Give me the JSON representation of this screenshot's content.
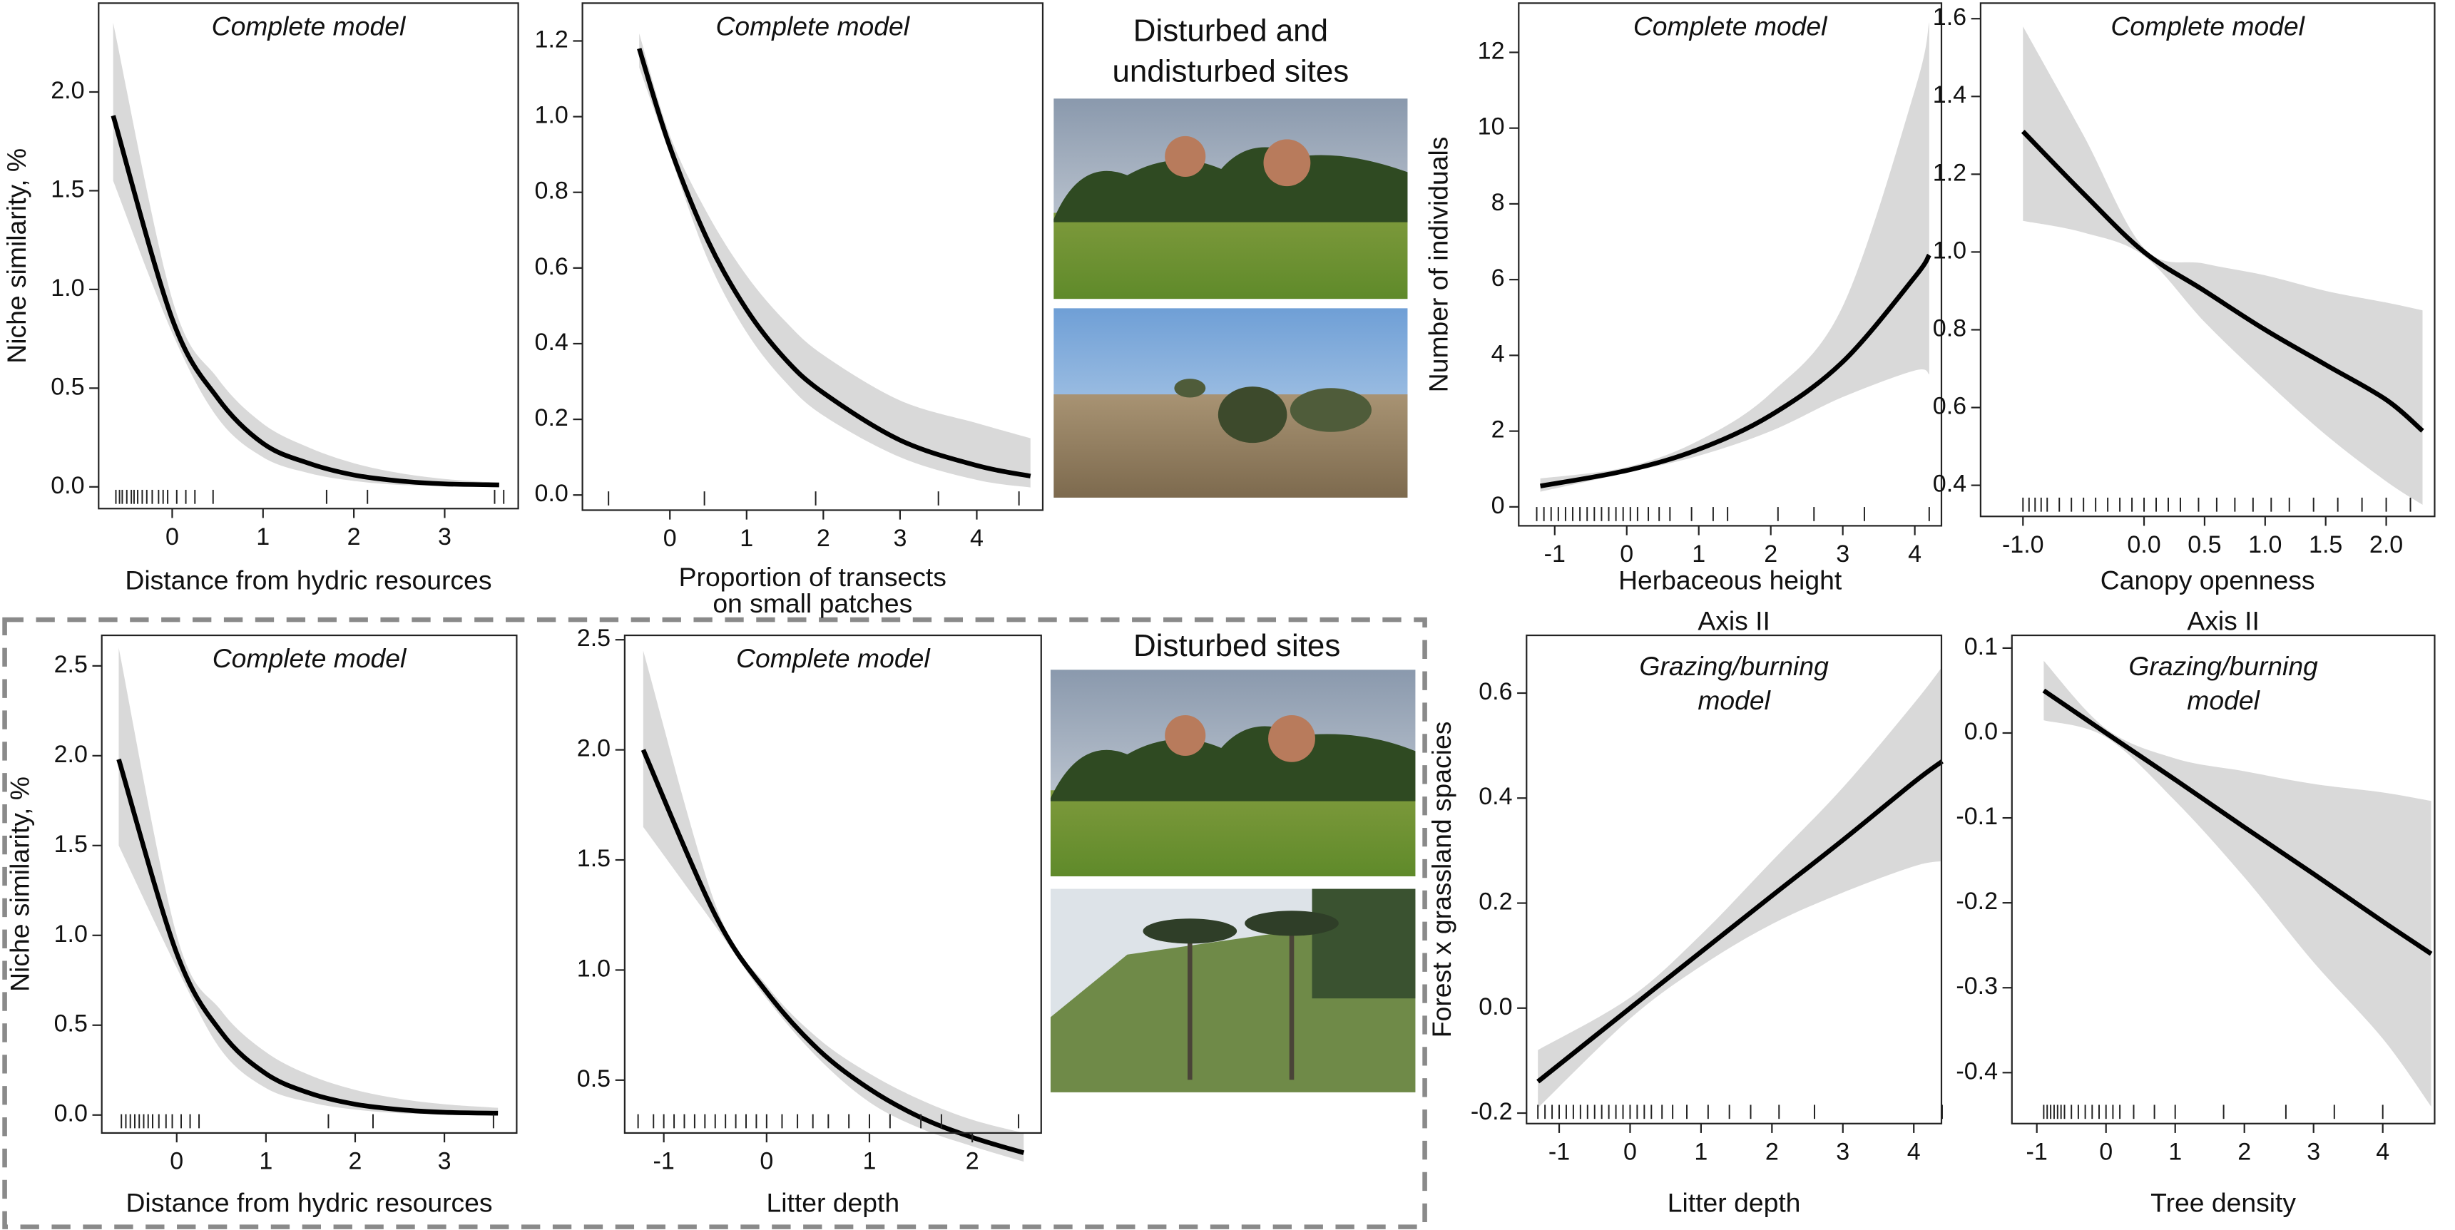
{
  "photo_titles": [
    [
      "Disturbed and",
      "undisturbed sites"
    ],
    [
      "Disturbed sites"
    ]
  ],
  "chart_data": [
    {
      "type": "line",
      "title": "Complete model",
      "x_label": [
        "Distance from hydric resources"
      ],
      "y_label": "Niche similarity, %",
      "color": "#000000",
      "band_color": "#d9d9d9",
      "x": [
        -0.65,
        0,
        0.5,
        1,
        1.5,
        2,
        2.5,
        3,
        3.6
      ],
      "values": [
        1.88,
        0.85,
        0.45,
        0.22,
        0.12,
        0.06,
        0.03,
        0.015,
        0.01
      ],
      "lower": [
        1.55,
        0.78,
        0.35,
        0.15,
        0.07,
        0.03,
        0.01,
        0.005,
        0
      ],
      "upper": [
        2.35,
        0.95,
        0.55,
        0.32,
        0.2,
        0.12,
        0.07,
        0.04,
        0.02
      ],
      "rug": [
        -0.62,
        -0.58,
        -0.55,
        -0.5,
        -0.45,
        -0.42,
        -0.38,
        -0.33,
        -0.28,
        -0.22,
        -0.15,
        -0.1,
        -0.05,
        0.05,
        0.15,
        0.25,
        0.45,
        1.7,
        2.15,
        3.55,
        3.65
      ],
      "xlim": [
        -0.81,
        3.81
      ],
      "ylim": [
        -0.11,
        2.45
      ],
      "xticks": [
        0,
        1,
        2,
        3
      ],
      "yticks": [
        {
          "value": 0,
          "label": "0.0"
        },
        0.5,
        {
          "value": 1,
          "label": "1.0"
        },
        1.5,
        {
          "value": 2,
          "label": "2.0"
        }
      ]
    },
    {
      "type": "line",
      "title": "Complete model",
      "x_label": [
        "Proportion of transects",
        "on small patches"
      ],
      "color": "#000000",
      "band_color": "#d9d9d9",
      "x": [
        -0.4,
        0,
        0.5,
        1,
        1.5,
        2,
        3,
        4,
        4.7
      ],
      "values": [
        1.18,
        0.92,
        0.67,
        0.49,
        0.36,
        0.27,
        0.145,
        0.078,
        0.05
      ],
      "lower": [
        1.13,
        0.9,
        0.62,
        0.43,
        0.3,
        0.21,
        0.1,
        0.04,
        0.02
      ],
      "upper": [
        1.22,
        0.95,
        0.74,
        0.58,
        0.46,
        0.37,
        0.25,
        0.19,
        0.15
      ],
      "rug": [
        -0.8,
        0.45,
        1.9,
        3.5,
        4.55
      ],
      "xlim": [
        -1.14,
        4.86
      ],
      "ylim": [
        -0.04,
        1.3
      ],
      "xticks": [
        0,
        1,
        2,
        3,
        4
      ],
      "yticks": [
        {
          "value": 0,
          "label": "0.0"
        },
        0.2,
        0.4,
        0.6,
        0.8,
        {
          "value": 1,
          "label": "1.0"
        },
        1.2
      ]
    },
    {
      "type": "line",
      "title": "Complete model",
      "x_label": [
        "Herbaceous height"
      ],
      "y_label": "Number of individuals",
      "color": "#000000",
      "band_color": "#d9d9d9",
      "x": [
        -1.2,
        0,
        1,
        2,
        3,
        4,
        4.2
      ],
      "values": [
        0.55,
        0.96,
        1.52,
        2.42,
        3.83,
        6.07,
        6.65
      ],
      "lower": [
        0.4,
        0.9,
        1.35,
        2.0,
        2.9,
        3.6,
        3.5
      ],
      "upper": [
        0.75,
        1.05,
        1.75,
        3.0,
        5.3,
        11,
        12.8
      ],
      "rug": [
        -1.25,
        -1.15,
        -1.05,
        -0.95,
        -0.85,
        -0.75,
        -0.65,
        -0.55,
        -0.45,
        -0.35,
        -0.25,
        -0.15,
        -0.05,
        0.05,
        0.15,
        0.3,
        0.45,
        0.6,
        0.9,
        1.2,
        1.4,
        2.1,
        2.6,
        3.3,
        4.2
      ],
      "xlim": [
        -1.5,
        4.37
      ],
      "ylim": [
        -0.5,
        13.3
      ],
      "xticks": [
        -1,
        0,
        1,
        2,
        3,
        4
      ],
      "yticks": [
        0,
        2,
        4,
        6,
        8,
        10,
        12
      ]
    },
    {
      "type": "line",
      "title": "Complete model",
      "x_label": [
        "Canopy openness"
      ],
      "color": "#000000",
      "band_color": "#d9d9d9",
      "x": [
        -1.0,
        -0.5,
        0,
        0.5,
        1,
        1.5,
        2,
        2.3
      ],
      "values": [
        1.31,
        1.15,
        1.0,
        0.9,
        0.8,
        0.71,
        0.62,
        0.54
      ],
      "lower": [
        1.08,
        1.05,
        0.99,
        0.82,
        0.67,
        0.53,
        0.41,
        0.35
      ],
      "upper": [
        1.58,
        1.3,
        1.01,
        0.97,
        0.94,
        0.9,
        0.87,
        0.85
      ],
      "rug": [
        -1.0,
        -0.95,
        -0.9,
        -0.85,
        -0.8,
        -0.7,
        -0.6,
        -0.5,
        -0.4,
        -0.3,
        -0.2,
        -0.1,
        0.0,
        0.1,
        0.2,
        0.3,
        0.45,
        0.6,
        0.75,
        0.9,
        1.05,
        1.2,
        1.4,
        1.6,
        1.8,
        2.0,
        2.2
      ],
      "xlim": [
        -1.35,
        2.4
      ],
      "ylim": [
        0.32,
        1.64
      ],
      "xticks": [
        {
          "value": -1,
          "label": "-1.0"
        },
        {
          "value": 0,
          "label": "0.0"
        },
        0.5,
        {
          "value": 1,
          "label": "1.0"
        },
        1.5,
        {
          "value": 2,
          "label": "2.0"
        }
      ],
      "yticks": [
        0.4,
        0.6,
        0.8,
        {
          "value": 1,
          "label": "1.0"
        },
        1.2,
        1.4,
        1.6
      ]
    },
    {
      "type": "line",
      "title": "Complete model",
      "x_label": [
        "Distance from hydric resources"
      ],
      "y_label": "Niche similarity, %",
      "color": "#000000",
      "band_color": "#d9d9d9",
      "x": [
        -0.65,
        0,
        0.5,
        1,
        1.5,
        2,
        2.5,
        3,
        3.6
      ],
      "values": [
        1.98,
        0.9,
        0.46,
        0.23,
        0.12,
        0.06,
        0.03,
        0.015,
        0.01
      ],
      "lower": [
        1.5,
        0.82,
        0.36,
        0.15,
        0.07,
        0.03,
        0.01,
        0.005,
        0
      ],
      "upper": [
        2.6,
        1.0,
        0.58,
        0.35,
        0.22,
        0.14,
        0.09,
        0.06,
        0.04
      ],
      "rug": [
        -0.62,
        -0.57,
        -0.52,
        -0.47,
        -0.42,
        -0.37,
        -0.32,
        -0.27,
        -0.2,
        -0.12,
        -0.05,
        0.05,
        0.15,
        0.25,
        1.7,
        2.2,
        3.55
      ],
      "xlim": [
        -0.84,
        3.81
      ],
      "ylim": [
        -0.1,
        2.67
      ],
      "xticks": [
        0,
        1,
        2,
        3
      ],
      "yticks": [
        {
          "value": 0,
          "label": "0.0"
        },
        0.5,
        {
          "value": 1,
          "label": "1.0"
        },
        1.5,
        {
          "value": 2,
          "label": "2.0"
        },
        2.5
      ]
    },
    {
      "type": "line",
      "title": "Complete model",
      "x_label": [
        "Litter depth"
      ],
      "color": "#000000",
      "band_color": "#d9d9d9",
      "x": [
        -1.2,
        -0.5,
        0,
        0.5,
        1,
        1.5,
        2,
        2.5
      ],
      "values": [
        2.0,
        1.25,
        0.9,
        0.64,
        0.46,
        0.33,
        0.24,
        0.17
      ],
      "lower": [
        1.65,
        1.2,
        0.87,
        0.6,
        0.4,
        0.28,
        0.2,
        0.13
      ],
      "upper": [
        2.45,
        1.3,
        0.93,
        0.69,
        0.53,
        0.41,
        0.32,
        0.26
      ],
      "rug": [
        -1.25,
        -1.1,
        -1.0,
        -0.9,
        -0.8,
        -0.7,
        -0.6,
        -0.5,
        -0.4,
        -0.3,
        -0.2,
        -0.1,
        0.0,
        0.15,
        0.3,
        0.45,
        0.6,
        0.8,
        1.0,
        1.2,
        1.5,
        1.7,
        2.45
      ],
      "xlim": [
        -1.38,
        2.67
      ],
      "ylim": [
        0.26,
        2.52
      ],
      "xticks": [
        -1,
        0,
        1,
        2
      ],
      "yticks": [
        0.5,
        {
          "value": 1,
          "label": "1.0"
        },
        1.5,
        {
          "value": 2,
          "label": "2.0"
        },
        2.5
      ]
    },
    {
      "type": "line",
      "title": "Axis II",
      "annotation": [
        "Grazing/burning",
        "model"
      ],
      "x_label": [
        "Litter depth"
      ],
      "y_label": "Forest x grassland spacies",
      "color": "#000000",
      "band_color": "#d9d9d9",
      "x": [
        -1.3,
        0,
        1,
        2,
        3,
        4,
        4.4
      ],
      "values": [
        -0.14,
        0.0,
        0.107,
        0.214,
        0.32,
        0.43,
        0.47
      ],
      "lower": [
        -0.19,
        -0.02,
        0.08,
        0.16,
        0.22,
        0.27,
        0.28
      ],
      "upper": [
        -0.08,
        0.02,
        0.14,
        0.28,
        0.42,
        0.58,
        0.65
      ],
      "rug": [
        -1.3,
        -1.2,
        -1.1,
        -1.0,
        -0.9,
        -0.8,
        -0.7,
        -0.6,
        -0.5,
        -0.4,
        -0.3,
        -0.2,
        -0.1,
        0.0,
        0.1,
        0.2,
        0.3,
        0.45,
        0.6,
        0.8,
        1.1,
        1.4,
        1.7,
        2.1,
        2.6,
        4.4
      ],
      "xlim": [
        -1.46,
        4.39
      ],
      "ylim": [
        -0.22,
        0.71
      ],
      "xticks": [
        -1,
        0,
        1,
        2,
        3,
        4
      ],
      "yticks": [
        -0.2,
        {
          "value": 0,
          "label": "0.0"
        },
        0.2,
        0.4,
        0.6
      ]
    },
    {
      "type": "line",
      "title": "Axis II",
      "annotation": [
        "Grazing/burning",
        "model"
      ],
      "x_label": [
        "Tree density"
      ],
      "color": "#000000",
      "band_color": "#d9d9d9",
      "x": [
        -0.9,
        0,
        1,
        2,
        3,
        4,
        4.7
      ],
      "values": [
        0.05,
        0.0,
        -0.055,
        -0.111,
        -0.166,
        -0.222,
        -0.26
      ],
      "lower": [
        0.015,
        -0.005,
        -0.08,
        -0.17,
        -0.27,
        -0.36,
        -0.44
      ],
      "upper": [
        0.085,
        0.005,
        -0.03,
        -0.045,
        -0.06,
        -0.07,
        -0.08
      ],
      "rug": [
        -0.9,
        -0.85,
        -0.8,
        -0.75,
        -0.7,
        -0.65,
        -0.6,
        -0.5,
        -0.4,
        -0.3,
        -0.2,
        -0.1,
        0.0,
        0.1,
        0.2,
        0.4,
        0.7,
        1.0,
        1.7,
        2.6,
        3.3,
        4.0
      ],
      "xlim": [
        -1.36,
        4.75
      ],
      "ylim": [
        -0.46,
        0.115
      ],
      "xticks": [
        -1,
        0,
        1,
        2,
        3,
        4
      ],
      "yticks": [
        -0.4,
        -0.3,
        -0.2,
        -0.1,
        {
          "value": 0,
          "label": "0.0"
        },
        0.1
      ]
    }
  ]
}
